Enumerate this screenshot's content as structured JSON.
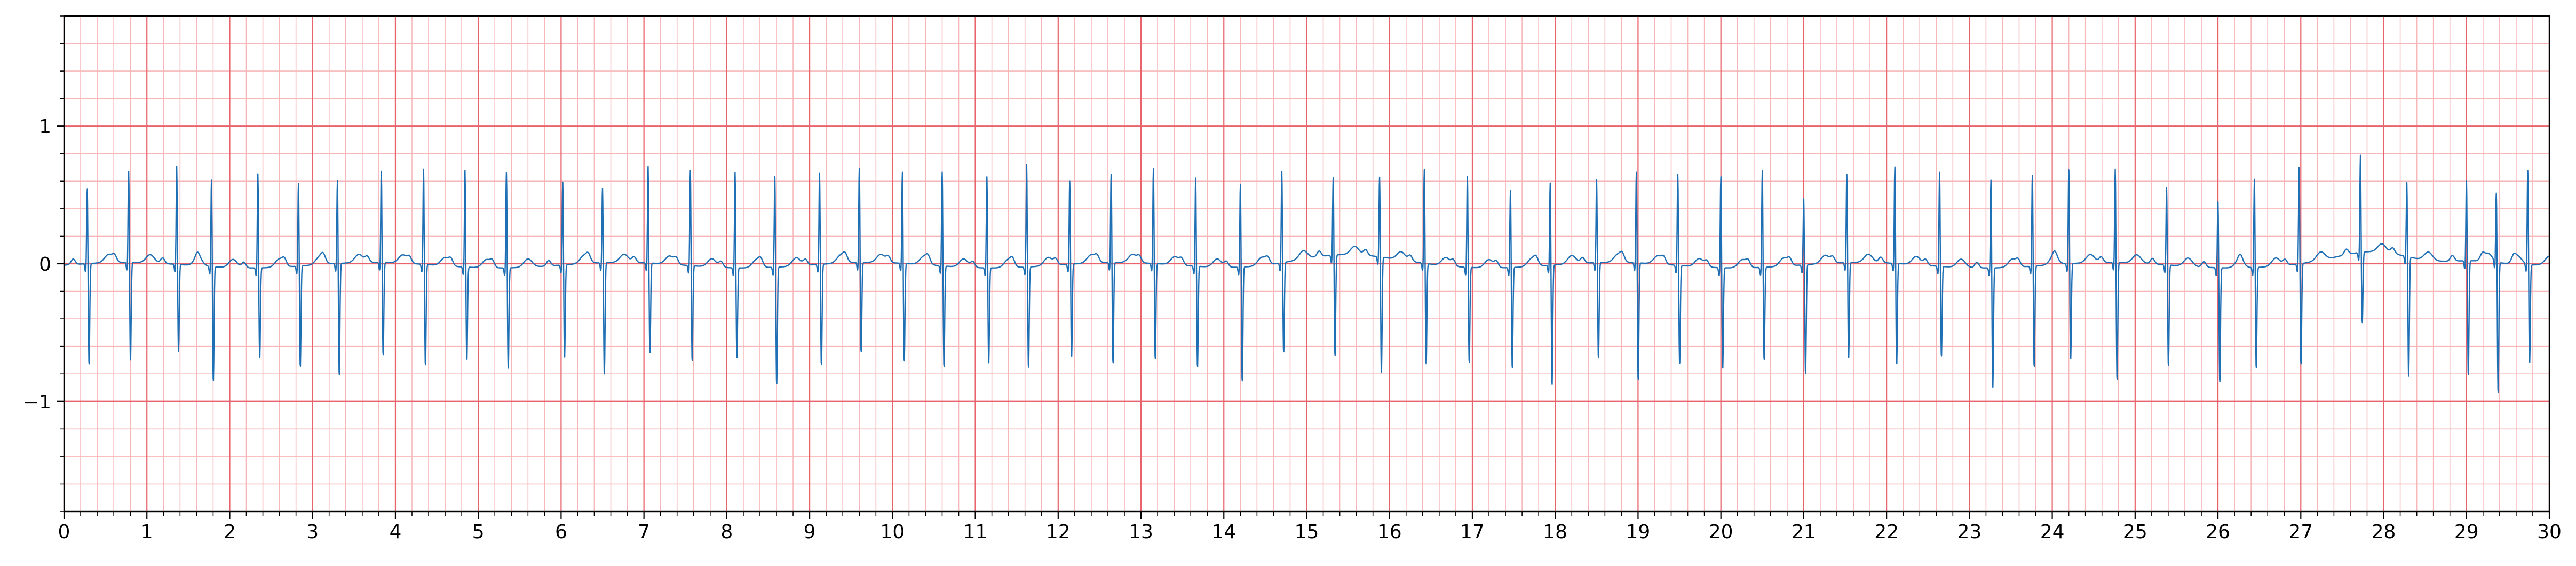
{
  "chart_data": {
    "type": "line",
    "title": "",
    "xlabel": "",
    "ylabel": "",
    "xlim": [
      0,
      30
    ],
    "ylim": [
      -1.8,
      1.8
    ],
    "x_ticks": [
      "0",
      "1",
      "2",
      "3",
      "4",
      "5",
      "6",
      "7",
      "8",
      "9",
      "10",
      "11",
      "12",
      "13",
      "14",
      "15",
      "16",
      "17",
      "18",
      "19",
      "20",
      "21",
      "22",
      "23",
      "24",
      "25",
      "26",
      "27",
      "28",
      "29",
      "30"
    ],
    "y_ticks": [
      {
        "value": -1,
        "label": "−1"
      },
      {
        "value": 0,
        "label": "0"
      },
      {
        "value": 1,
        "label": "1"
      }
    ],
    "grid": {
      "major_x_step": 1,
      "minor_x_step": 0.2,
      "major_y_step": 1,
      "minor_y_step": 0.2,
      "major_color": "#e8636b",
      "minor_color": "#f7b6b8"
    },
    "series": [
      {
        "color": "#1f6fb5",
        "beats": [
          {
            "t": 0.28,
            "r": 0.56,
            "s": -0.74
          },
          {
            "t": 0.78,
            "r": 0.68,
            "s": -0.72
          },
          {
            "t": 1.36,
            "r": 0.73,
            "s": -0.64
          },
          {
            "t": 1.78,
            "r": 0.65,
            "s": -0.84
          },
          {
            "t": 2.34,
            "r": 0.7,
            "s": -0.66
          },
          {
            "t": 2.83,
            "r": 0.62,
            "s": -0.74
          },
          {
            "t": 3.3,
            "r": 0.62,
            "s": -0.82
          },
          {
            "t": 3.83,
            "r": 0.68,
            "s": -0.68
          },
          {
            "t": 4.34,
            "r": 0.71,
            "s": -0.74
          },
          {
            "t": 4.84,
            "r": 0.72,
            "s": -0.68
          },
          {
            "t": 5.34,
            "r": 0.71,
            "s": -0.74
          },
          {
            "t": 6.02,
            "r": 0.62,
            "s": -0.68
          },
          {
            "t": 6.5,
            "r": 0.56,
            "s": -0.82
          },
          {
            "t": 7.05,
            "r": 0.72,
            "s": -0.66
          },
          {
            "t": 7.56,
            "r": 0.71,
            "s": -0.7
          },
          {
            "t": 8.1,
            "r": 0.71,
            "s": -0.66
          },
          {
            "t": 8.58,
            "r": 0.68,
            "s": -0.86
          },
          {
            "t": 9.12,
            "r": 0.68,
            "s": -0.74
          },
          {
            "t": 9.6,
            "r": 0.7,
            "s": -0.66
          },
          {
            "t": 10.12,
            "r": 0.68,
            "s": -0.72
          },
          {
            "t": 10.6,
            "r": 0.7,
            "s": -0.74
          },
          {
            "t": 11.14,
            "r": 0.68,
            "s": -0.7
          },
          {
            "t": 11.62,
            "r": 0.76,
            "s": -0.74
          },
          {
            "t": 12.14,
            "r": 0.62,
            "s": -0.68
          },
          {
            "t": 12.64,
            "r": 0.66,
            "s": -0.74
          },
          {
            "t": 13.15,
            "r": 0.71,
            "s": -0.7
          },
          {
            "t": 13.66,
            "r": 0.66,
            "s": -0.74
          },
          {
            "t": 14.2,
            "r": 0.62,
            "s": -0.84
          },
          {
            "t": 14.7,
            "r": 0.68,
            "s": -0.66
          },
          {
            "t": 15.32,
            "r": 0.58,
            "s": -0.74
          },
          {
            "t": 15.88,
            "r": 0.6,
            "s": -0.85
          },
          {
            "t": 16.42,
            "r": 0.7,
            "s": -0.74
          },
          {
            "t": 16.94,
            "r": 0.68,
            "s": -0.7
          },
          {
            "t": 17.46,
            "r": 0.58,
            "s": -0.74
          },
          {
            "t": 17.94,
            "r": 0.62,
            "s": -0.88
          },
          {
            "t": 18.5,
            "r": 0.62,
            "s": -0.7
          },
          {
            "t": 18.98,
            "r": 0.68,
            "s": -0.86
          },
          {
            "t": 19.48,
            "r": 0.68,
            "s": -0.72
          },
          {
            "t": 20.0,
            "r": 0.68,
            "s": -0.74
          },
          {
            "t": 20.5,
            "r": 0.72,
            "s": -0.68
          },
          {
            "t": 21.0,
            "r": 0.5,
            "s": -0.8
          },
          {
            "t": 21.52,
            "r": 0.66,
            "s": -0.7
          },
          {
            "t": 22.1,
            "r": 0.72,
            "s": -0.74
          },
          {
            "t": 22.64,
            "r": 0.7,
            "s": -0.66
          },
          {
            "t": 23.26,
            "r": 0.66,
            "s": -0.88
          },
          {
            "t": 23.76,
            "r": 0.68,
            "s": -0.74
          },
          {
            "t": 24.2,
            "r": 0.7,
            "s": -0.7
          },
          {
            "t": 24.76,
            "r": 0.7,
            "s": -0.86
          },
          {
            "t": 25.38,
            "r": 0.58,
            "s": -0.74
          },
          {
            "t": 26.0,
            "r": 0.5,
            "s": -0.84
          },
          {
            "t": 26.44,
            "r": 0.66,
            "s": -0.74
          },
          {
            "t": 26.98,
            "r": 0.72,
            "s": -0.74
          },
          {
            "t": 27.72,
            "r": 0.72,
            "s": -0.52
          },
          {
            "t": 28.28,
            "r": 0.56,
            "s": -0.88
          },
          {
            "t": 29.0,
            "r": 0.6,
            "s": -0.84
          },
          {
            "t": 29.36,
            "r": 0.52,
            "s": -0.96
          },
          {
            "t": 29.74,
            "r": 0.7,
            "s": -0.72
          }
        ]
      }
    ]
  }
}
